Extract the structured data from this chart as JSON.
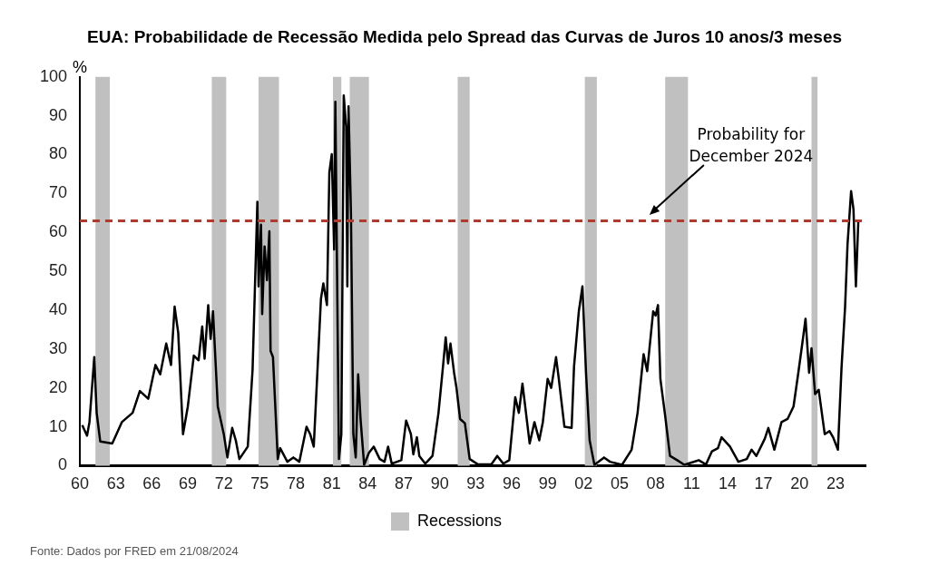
{
  "chart_data": {
    "type": "line",
    "title": "EUA: Probabilidade de Recessão Medida pelo Spread das Curvas de Juros 10 anos/3 meses",
    "ylabel": "%",
    "annotations": [
      "Probability for December 2024",
      "Fonte: Dados por FRED em 21/08/2024"
    ],
    "series": [
      {
        "color": "#000000",
        "x": [
          1960.2,
          1960.6,
          1960.8,
          1961.2,
          1961.4,
          1961.7,
          1962.7,
          1963.5,
          1964.4,
          1965.0,
          1965.7,
          1966.3,
          1966.7,
          1967.2,
          1967.6,
          1967.9,
          1968.2,
          1968.6,
          1969.0,
          1969.5,
          1969.9,
          1970.2,
          1970.4,
          1970.7,
          1970.9,
          1971.1,
          1971.5,
          1972.0,
          1972.3,
          1972.7,
          1973.0,
          1973.3,
          1974.0,
          1974.4,
          1974.8,
          1974.9,
          1975.1,
          1975.2,
          1975.4,
          1975.6,
          1975.8,
          1975.9,
          1976.1,
          1976.5,
          1976.7,
          1977.3,
          1977.8,
          1978.3,
          1978.9,
          1979.2,
          1979.5,
          1979.8,
          1980.1,
          1980.3,
          1980.6,
          1980.8,
          1981.0,
          1981.2,
          1981.3,
          1981.6,
          1981.8,
          1982.0,
          1982.2,
          1982.3,
          1982.4,
          1982.6,
          1982.8,
          1983.0,
          1983.2,
          1983.4,
          1983.7,
          1984.1,
          1984.5,
          1985.0,
          1985.4,
          1985.7,
          1986.0,
          1986.8,
          1987.2,
          1987.6,
          1987.8,
          1988.1,
          1988.3,
          1988.8,
          1989.4,
          1989.9,
          1990.3,
          1990.5,
          1990.7,
          1990.9,
          1991.2,
          1991.4,
          1991.7,
          1992.1,
          1992.5,
          1993.2,
          1994.3,
          1994.8,
          1995.3,
          1995.8,
          1996.3,
          1996.6,
          1996.9,
          1997.5,
          1997.9,
          1998.3,
          1998.6,
          1999.0,
          1999.3,
          1999.7,
          1999.9,
          2000.4,
          2001.0,
          2001.2,
          2001.6,
          2001.9,
          2002.2,
          2002.5,
          2002.9,
          2003.7,
          2004.2,
          2005.2,
          2006.0,
          2006.5,
          2007.0,
          2007.3,
          2007.8,
          2008.0,
          2008.2,
          2008.4,
          2008.8,
          2009.2,
          2009.8,
          2010.4,
          2011.6,
          2012.2,
          2012.7,
          2013.2,
          2013.5,
          2014.2,
          2014.9,
          2015.6,
          2016.0,
          2016.4,
          2017.1,
          2017.4,
          2017.9,
          2018.5,
          2019.0,
          2019.5,
          2019.9,
          2020.3,
          2020.5,
          2020.8,
          2021.0,
          2021.3,
          2021.6,
          2022.1,
          2022.5,
          2022.8,
          2023.2,
          2023.5,
          2023.8,
          2024.0,
          2024.3,
          2024.5,
          2024.7,
          2024.9
        ],
        "values": [
          10.4,
          7.7,
          11.2,
          27.9,
          13.6,
          6.2,
          5.7,
          11.2,
          13.6,
          19.2,
          17.2,
          25.9,
          23.5,
          31.4,
          25.9,
          40.9,
          34.2,
          8.1,
          15.2,
          28.3,
          27.1,
          35.8,
          27.5,
          41.3,
          32.6,
          39.7,
          15.2,
          8.1,
          2.1,
          9.7,
          6.5,
          1.7,
          4.9,
          24.7,
          67.9,
          46.1,
          62.0,
          39.0,
          56.4,
          47.7,
          60.3,
          29.5,
          27.9,
          1.7,
          4.5,
          1.0,
          2.1,
          1.0,
          10.0,
          8.1,
          4.9,
          23.9,
          42.9,
          46.9,
          41.3,
          75.4,
          80.1,
          55.6,
          93.6,
          1.7,
          8.1,
          95.2,
          87.2,
          46.1,
          92.4,
          65.1,
          8.1,
          2.1,
          23.5,
          12.0,
          0.2,
          3.3,
          4.9,
          1.7,
          1.0,
          4.9,
          0.5,
          1.4,
          11.6,
          8.1,
          2.9,
          7.3,
          2.5,
          0.5,
          2.5,
          13.6,
          26.3,
          33.0,
          26.3,
          31.4,
          23.9,
          20.0,
          12.0,
          10.9,
          1.7,
          0.3,
          0.3,
          2.5,
          0.5,
          1.4,
          17.6,
          13.6,
          21.1,
          5.7,
          11.2,
          6.5,
          11.2,
          22.3,
          20.0,
          27.9,
          23.1,
          10.0,
          9.7,
          25.5,
          39.7,
          46.1,
          23.9,
          6.5,
          0.2,
          2.1,
          1.0,
          0.2,
          4.1,
          13.6,
          28.7,
          24.3,
          39.7,
          38.6,
          41.3,
          22.3,
          12.8,
          2.5,
          1.4,
          0.2,
          1.4,
          0.3,
          3.7,
          4.5,
          7.3,
          4.9,
          1.0,
          1.7,
          4.1,
          2.5,
          6.9,
          9.7,
          4.1,
          11.2,
          12.0,
          15.2,
          23.9,
          33.0,
          37.8,
          23.9,
          30.2,
          18.4,
          19.5,
          8.1,
          8.9,
          7.3,
          4.1,
          25.1,
          40.9,
          56.8,
          70.6,
          65.9,
          46.1,
          62.7
        ]
      }
    ],
    "xlim": [
      1960,
      2025.5
    ],
    "xticks": [
      {
        "value": 1960,
        "label": "60"
      },
      {
        "value": 1963,
        "label": "63"
      },
      {
        "value": 1966,
        "label": "66"
      },
      {
        "value": 1969,
        "label": "69"
      },
      {
        "value": 1972,
        "label": "72"
      },
      {
        "value": 1975,
        "label": "75"
      },
      {
        "value": 1978,
        "label": "78"
      },
      {
        "value": 1981,
        "label": "81"
      },
      {
        "value": 1984,
        "label": "84"
      },
      {
        "value": 1987,
        "label": "87"
      },
      {
        "value": 1990,
        "label": "90"
      },
      {
        "value": 1993,
        "label": "93"
      },
      {
        "value": 1996,
        "label": "96"
      },
      {
        "value": 1999,
        "label": "99"
      },
      {
        "value": 2002,
        "label": "02"
      },
      {
        "value": 2005,
        "label": "05"
      },
      {
        "value": 2008,
        "label": "08"
      },
      {
        "value": 2011,
        "label": "11"
      },
      {
        "value": 2014,
        "label": "14"
      },
      {
        "value": 2017,
        "label": "17"
      },
      {
        "value": 2020,
        "label": "20"
      },
      {
        "value": 2023,
        "label": "23"
      }
    ],
    "ylim": [
      0,
      100
    ],
    "yticks": [
      0,
      10,
      20,
      30,
      40,
      50,
      60,
      70,
      80,
      90,
      100
    ],
    "ref_lines": [
      {
        "axis": "y",
        "value": 63,
        "color": "#b03a2e",
        "line_style": "dashed"
      }
    ],
    "bands": [
      {
        "axis": "x",
        "from": 1961.3,
        "to": 1962.5,
        "label": "Recessions",
        "color": "#c0c0c0"
      },
      {
        "axis": "x",
        "from": 1971.0,
        "to": 1972.2,
        "color": "#c0c0c0"
      },
      {
        "axis": "x",
        "from": 1974.9,
        "to": 1976.6,
        "color": "#c0c0c0"
      },
      {
        "axis": "x",
        "from": 1981.1,
        "to": 1981.8,
        "color": "#c0c0c0"
      },
      {
        "axis": "x",
        "from": 1982.5,
        "to": 1984.1,
        "color": "#c0c0c0"
      },
      {
        "axis": "x",
        "from": 1991.5,
        "to": 1992.5,
        "color": "#c0c0c0"
      },
      {
        "axis": "x",
        "from": 2002.1,
        "to": 2003.1,
        "color": "#c0c0c0"
      },
      {
        "axis": "x",
        "from": 2008.8,
        "to": 2010.7,
        "color": "#c0c0c0"
      },
      {
        "axis": "x",
        "from": 2021.0,
        "to": 2021.5,
        "color": "#c0c0c0"
      }
    ],
    "grid": false,
    "legend": "bottom",
    "marker": "none",
    "line_style": "solid"
  }
}
